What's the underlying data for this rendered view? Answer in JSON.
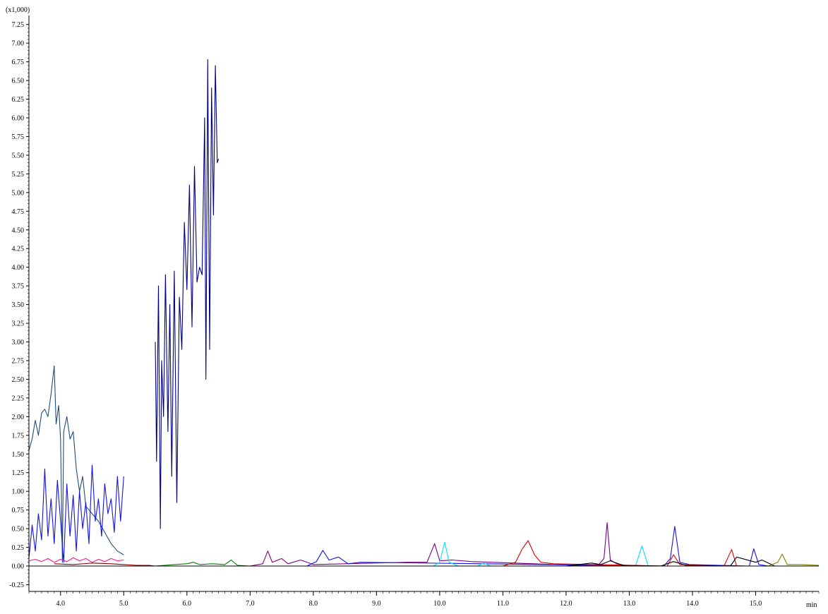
{
  "chart_data": {
    "type": "line",
    "y_multiplier_label": "(x1,000)",
    "x_unit_label": "min",
    "xlim": [
      3.5,
      16.0
    ],
    "ylim": [
      -0.34,
      7.37
    ],
    "x_ticks": [
      "4.0",
      "5.0",
      "6.0",
      "7.0",
      "8.0",
      "9.0",
      "10.0",
      "11.0",
      "12.0",
      "13.0",
      "14.0",
      "15.0"
    ],
    "y_ticks": [
      "7.25",
      "7.00",
      "6.75",
      "6.50",
      "6.25",
      "6.00",
      "5.75",
      "5.50",
      "5.25",
      "5.00",
      "4.75",
      "4.50",
      "4.25",
      "4.00",
      "3.75",
      "3.50",
      "3.25",
      "3.00",
      "2.75",
      "2.50",
      "2.25",
      "2.00",
      "1.75",
      "1.50",
      "1.25",
      "1.00",
      "0.75",
      "0.50",
      "0.25",
      "0.00",
      "-0.25"
    ],
    "grid": false,
    "legend": "none",
    "colors": {
      "teal_trace": "#1f4e79",
      "blue_trace": "#1414e0",
      "navy_trace": "#000080",
      "pink_trace": "#ff1493",
      "darkred_trace": "#8b0000",
      "green_trace": "#008000",
      "purple_trace": "#800080",
      "cyan_trace": "#00e5ee",
      "red_trace": "#e00000",
      "olive_trace": "#808000",
      "black_trace": "#000000"
    },
    "series": [
      {
        "color_key": "teal_trace",
        "x": [
          3.5,
          3.55,
          3.6,
          3.65,
          3.7,
          3.75,
          3.8,
          3.85,
          3.9,
          3.93,
          3.97,
          4.0,
          4.03,
          4.05,
          4.1,
          4.15,
          4.2,
          4.25,
          4.3,
          4.35,
          4.4,
          4.5,
          4.6,
          4.7,
          4.8,
          4.9,
          5.0
        ],
        "y": [
          1.55,
          1.7,
          1.95,
          1.75,
          2.05,
          2.1,
          2.0,
          2.3,
          2.68,
          1.9,
          2.15,
          1.7,
          0.05,
          1.8,
          2.0,
          1.7,
          1.8,
          1.3,
          1.0,
          1.2,
          0.8,
          0.7,
          0.6,
          0.45,
          0.3,
          0.2,
          0.15
        ]
      },
      {
        "color_key": "blue_trace",
        "x": [
          3.5,
          3.55,
          3.6,
          3.65,
          3.7,
          3.75,
          3.8,
          3.85,
          3.9,
          3.95,
          4.0,
          4.05,
          4.1,
          4.15,
          4.2,
          4.25,
          4.3,
          4.35,
          4.4,
          4.45,
          4.5,
          4.55,
          4.6,
          4.65,
          4.7,
          4.75,
          4.8,
          4.85,
          4.9,
          4.95,
          5.0
        ],
        "y": [
          0.1,
          0.55,
          0.2,
          0.7,
          0.35,
          1.3,
          0.4,
          0.9,
          0.3,
          1.15,
          0.6,
          0.05,
          1.1,
          0.4,
          0.95,
          0.2,
          1.0,
          0.5,
          0.85,
          0.3,
          1.35,
          0.6,
          0.9,
          0.4,
          1.1,
          0.7,
          0.9,
          0.45,
          1.2,
          0.6,
          1.2
        ]
      },
      {
        "color_key": "navy_trace",
        "x": [
          5.5,
          5.52,
          5.55,
          5.58,
          5.6,
          5.63,
          5.66,
          5.7,
          5.73,
          5.76,
          5.8,
          5.84,
          5.88,
          5.92,
          5.96,
          6.0,
          6.04,
          6.08,
          6.12,
          6.16,
          6.2,
          6.24,
          6.28,
          6.3,
          6.33,
          6.36,
          6.39,
          6.42,
          6.45,
          6.48,
          6.5
        ],
        "y": [
          3.0,
          1.4,
          3.75,
          0.5,
          2.75,
          2.0,
          3.9,
          1.8,
          3.5,
          1.2,
          3.95,
          0.85,
          3.6,
          2.9,
          4.6,
          3.7,
          5.1,
          3.2,
          5.35,
          3.8,
          4.0,
          3.9,
          6.0,
          2.5,
          6.78,
          2.9,
          6.4,
          4.7,
          6.7,
          5.4,
          5.45
        ]
      },
      {
        "color_key": "pink_trace",
        "x": [
          3.5,
          3.6,
          3.7,
          3.8,
          3.9,
          4.0,
          4.1,
          4.2,
          4.3,
          4.4,
          4.5,
          4.6,
          4.7,
          4.8,
          4.9,
          5.0
        ],
        "y": [
          0.07,
          0.09,
          0.06,
          0.1,
          0.05,
          0.09,
          0.06,
          0.11,
          0.07,
          0.1,
          0.05,
          0.09,
          0.06,
          0.1,
          0.07,
          0.08
        ]
      },
      {
        "color_key": "darkred_trace",
        "x": [
          3.9,
          4.2,
          4.5,
          4.8,
          5.0,
          5.2,
          5.4,
          5.5
        ],
        "y": [
          0.03,
          0.02,
          0.04,
          0.03,
          0.02,
          0.01,
          0.01,
          0.0
        ]
      },
      {
        "color_key": "green_trace",
        "x": [
          5.5,
          5.8,
          6.0,
          6.1,
          6.2,
          6.4,
          6.6,
          6.7,
          6.8,
          7.0
        ],
        "y": [
          0.0,
          0.02,
          0.03,
          0.05,
          0.02,
          0.03,
          0.02,
          0.08,
          0.01,
          0.0
        ]
      },
      {
        "color_key": "purple_trace",
        "x": [
          7.0,
          7.2,
          7.28,
          7.35,
          7.5,
          7.6,
          7.8,
          8.0,
          9.5,
          9.8,
          9.92,
          10.0,
          10.2,
          10.5,
          12.5,
          12.6,
          12.65,
          12.7,
          12.8,
          13.0
        ],
        "y": [
          0.0,
          0.03,
          0.2,
          0.05,
          0.1,
          0.03,
          0.08,
          0.02,
          0.05,
          0.05,
          0.3,
          0.07,
          0.08,
          0.06,
          0.0,
          0.1,
          0.58,
          0.08,
          0.03,
          0.0
        ]
      },
      {
        "color_key": "blue_trace",
        "x": [
          7.9,
          8.05,
          8.15,
          8.25,
          8.4,
          8.55,
          8.75,
          13.55,
          13.65,
          13.72,
          13.8,
          13.95,
          14.9,
          14.97,
          15.05,
          15.2
        ],
        "y": [
          0.0,
          0.06,
          0.21,
          0.08,
          0.12,
          0.03,
          0.05,
          0.0,
          0.1,
          0.53,
          0.05,
          0.02,
          0.0,
          0.23,
          0.02,
          0.0
        ]
      },
      {
        "color_key": "cyan_trace",
        "x": [
          9.9,
          10.0,
          10.08,
          10.15,
          10.3,
          10.6,
          10.7,
          10.8,
          13.1,
          13.2,
          13.3
        ],
        "y": [
          0.0,
          0.05,
          0.32,
          0.05,
          0.0,
          0.0,
          0.04,
          0.0,
          0.0,
          0.27,
          0.0
        ]
      },
      {
        "color_key": "red_trace",
        "x": [
          11.0,
          11.2,
          11.3,
          11.4,
          11.5,
          11.6,
          11.8,
          13.6,
          13.7,
          13.8,
          14.5,
          14.62,
          14.7
        ],
        "y": [
          0.0,
          0.05,
          0.22,
          0.34,
          0.15,
          0.05,
          0.03,
          0.0,
          0.15,
          0.02,
          0.0,
          0.22,
          0.0
        ]
      },
      {
        "color_key": "black_trace",
        "x": [
          12.0,
          12.2,
          12.4,
          12.55,
          12.7,
          12.9,
          13.5,
          13.7,
          13.9,
          14.6,
          14.7,
          15.0,
          15.1,
          15.3
        ],
        "y": [
          0.0,
          0.02,
          0.04,
          0.02,
          0.07,
          0.01,
          0.0,
          0.06,
          0.01,
          0.0,
          0.12,
          0.05,
          0.08,
          0.0
        ]
      },
      {
        "color_key": "olive_trace",
        "x": [
          15.2,
          15.35,
          15.42,
          15.5,
          15.7,
          16.0
        ],
        "y": [
          0.0,
          0.05,
          0.16,
          0.02,
          0.02,
          0.01
        ]
      }
    ]
  }
}
